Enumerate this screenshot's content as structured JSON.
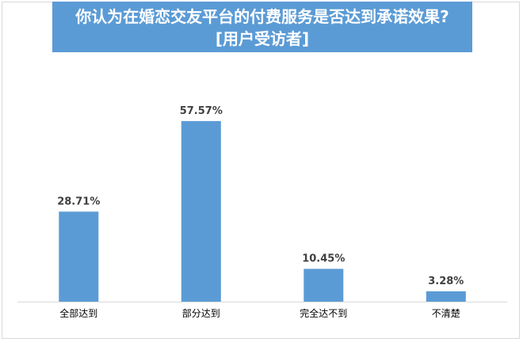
{
  "chart_data": {
    "type": "bar",
    "title_lines": [
      "你认为在婚恋交友平台的付费服务是否达到承诺效果?",
      "[用户受访者]"
    ],
    "categories": [
      "全部达到",
      "部分达到",
      "完全达不到",
      "不清楚"
    ],
    "values": [
      28.71,
      57.57,
      10.45,
      3.28
    ],
    "value_labels": [
      "28.71%",
      "57.57%",
      "10.45%",
      "3.28%"
    ],
    "xlabel": "",
    "ylabel": "",
    "ylim": [
      0,
      60
    ],
    "grid": false,
    "legend": "none",
    "bar_color": "#5b9bd5"
  }
}
